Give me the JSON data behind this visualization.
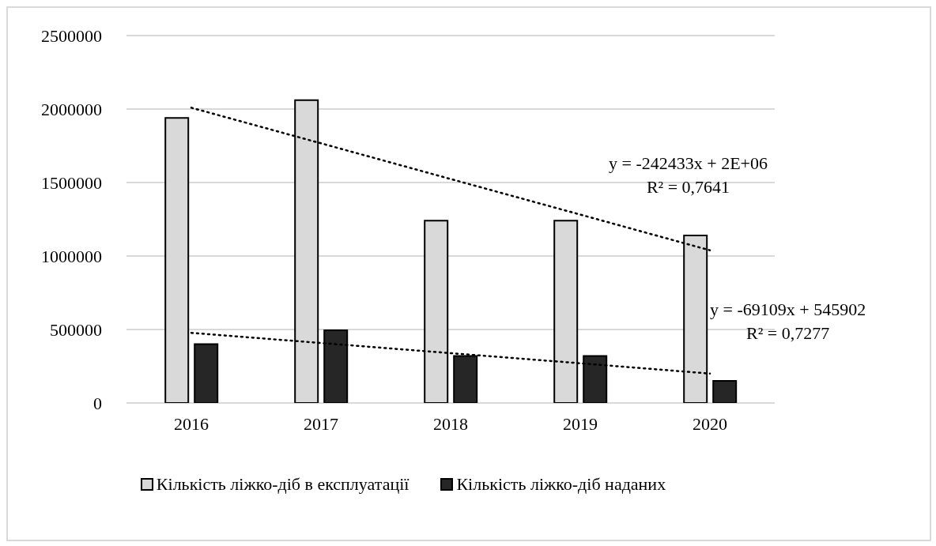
{
  "chart_data": {
    "type": "bar",
    "categories": [
      "2016",
      "2017",
      "2018",
      "2019",
      "2020"
    ],
    "series": [
      {
        "name": "Кількість ліжко-діб в експлуатації",
        "color": "#d9d9d9",
        "values": [
          1940000,
          2060000,
          1240000,
          1240000,
          1140000
        ]
      },
      {
        "name": "Кількість ліжко-діб наданих",
        "color": "#262626",
        "values": [
          400000,
          495000,
          320000,
          320000,
          150000
        ]
      },
      {
        "type": "line",
        "color": "#000000",
        "values": [
          2009000,
          1767000,
          1524000,
          1282000,
          1039000
        ],
        "line_style": "dotted",
        "marker": "none"
      },
      {
        "type": "line",
        "color": "#000000",
        "values": [
          477000,
          408000,
          339000,
          270000,
          200000
        ],
        "line_style": "dotted",
        "marker": "none"
      }
    ],
    "annotations": [
      "y = -242433x + 2E+06\nR² = 0,7641",
      "y = -69109x + 545902\nR² = 0,7277"
    ],
    "ylim": [
      0,
      2500000
    ],
    "yticks": [
      0,
      500000,
      1000000,
      1500000,
      2000000,
      2500000
    ],
    "grid": "y",
    "legend": "bottom"
  }
}
